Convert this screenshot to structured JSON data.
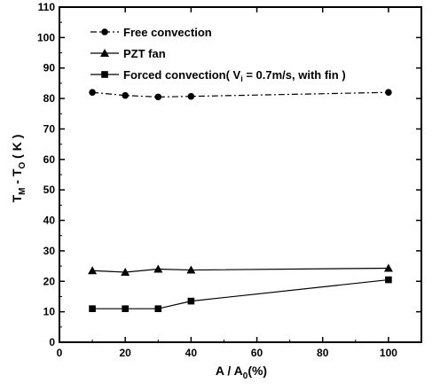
{
  "chart_data": {
    "type": "line",
    "title": "",
    "xlabel": "A / A",
    "xlabel_sub": "0",
    "xlabel_unit": "(%)",
    "ylabel": "T",
    "ylabel_sub1": "M",
    "ylabel_mid": " - T",
    "ylabel_sub2": "O",
    "ylabel_unit": " ( K )",
    "xlim": [
      0,
      110
    ],
    "ylim": [
      0,
      110
    ],
    "xticks": [
      0,
      20,
      40,
      60,
      80,
      100
    ],
    "yticks": [
      0,
      10,
      20,
      30,
      40,
      50,
      60,
      70,
      80,
      90,
      100,
      110
    ],
    "grid": false,
    "legend_position": "top-left",
    "series": [
      {
        "name": "Free convection",
        "marker": "circle",
        "line_style": "dashdot",
        "x": [
          10,
          20,
          30,
          40,
          100
        ],
        "y": [
          82,
          81,
          80.5,
          80.7,
          82
        ]
      },
      {
        "name": "PZT fan",
        "marker": "triangle",
        "line_style": "solid",
        "x": [
          10,
          20,
          30,
          40,
          100
        ],
        "y": [
          23.5,
          23,
          24,
          23.7,
          24.3
        ]
      },
      {
        "name": "Forced convection( V",
        "name_sub": "i",
        "name_tail": " = 0.7m/s, with fin )",
        "marker": "square",
        "line_style": "solid",
        "x": [
          10,
          20,
          30,
          40,
          100
        ],
        "y": [
          11,
          11,
          11,
          13.5,
          20.5
        ]
      }
    ]
  }
}
